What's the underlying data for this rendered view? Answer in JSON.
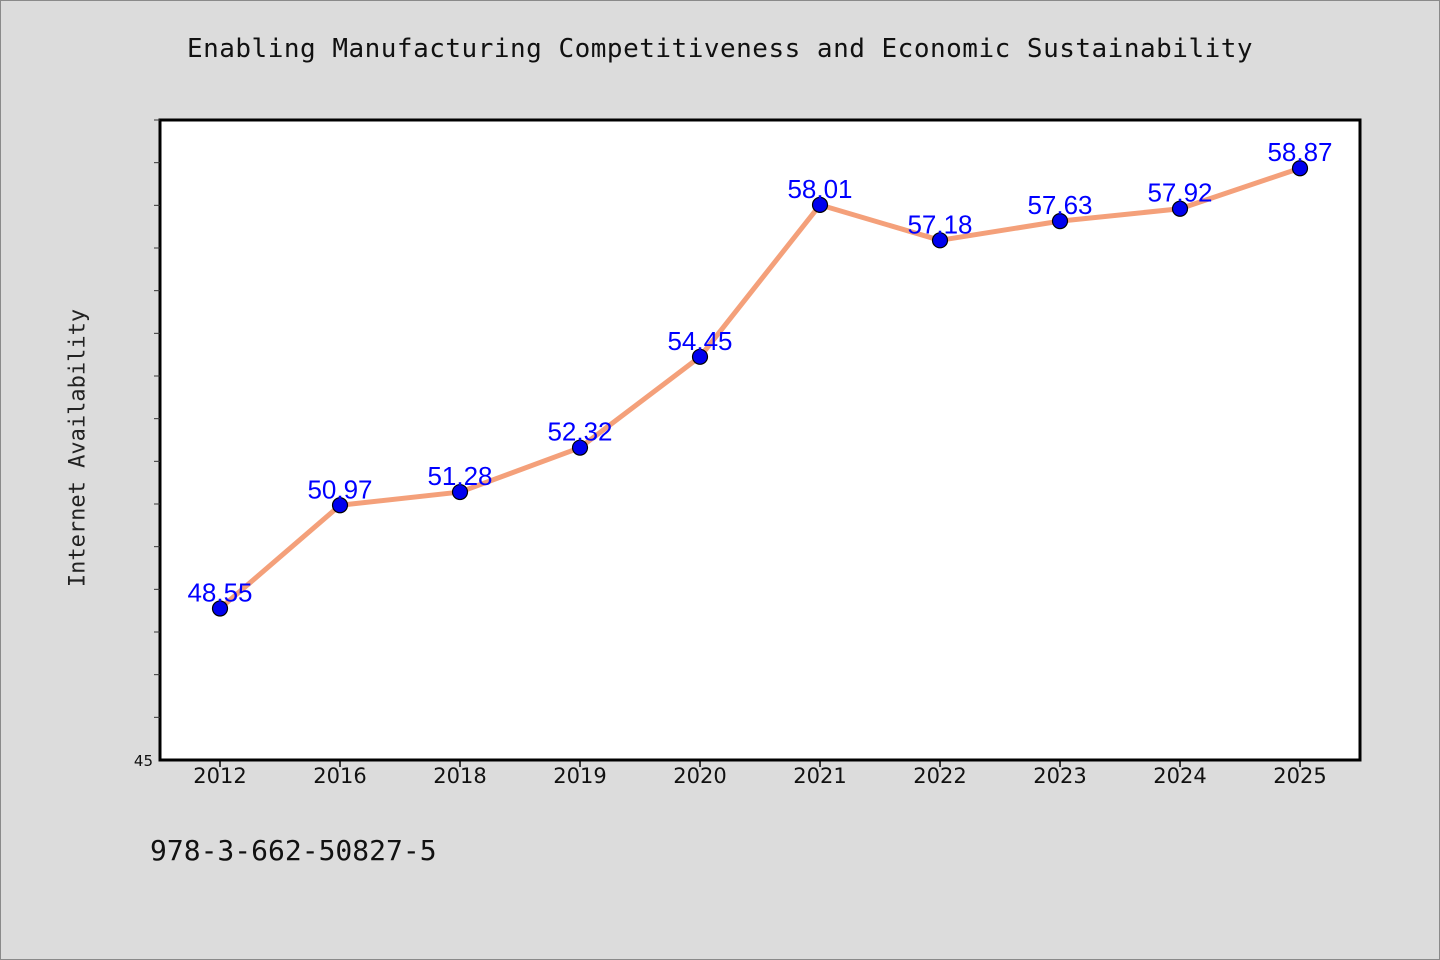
{
  "title": "Enabling Manufacturing Competitiveness and Economic Sustainability",
  "footer_text": "978-3-662-50827-5",
  "chart_data": {
    "type": "line",
    "ylabel": "Internet Availability",
    "xlabel": "",
    "categories": [
      "2012",
      "2016",
      "2018",
      "2019",
      "2020",
      "2021",
      "2022",
      "2023",
      "2024",
      "2025"
    ],
    "series": [
      {
        "values": [
          48.55,
          50.97,
          51.28,
          52.32,
          54.45,
          58.01,
          57.18,
          57.63,
          57.92,
          58.87
        ],
        "data_labels": [
          "48.55",
          "50.97",
          "51.28",
          "52.32",
          "54.45",
          "58.01",
          "57.18",
          "57.63",
          "57.92",
          "58.87"
        ],
        "line_color": "#f4a07a",
        "marker_color": "#0000ee"
      }
    ],
    "ylim": [
      45,
      60
    ],
    "yticks_labeled": [
      "45"
    ],
    "grid": false,
    "label_color": "#0000ff"
  }
}
